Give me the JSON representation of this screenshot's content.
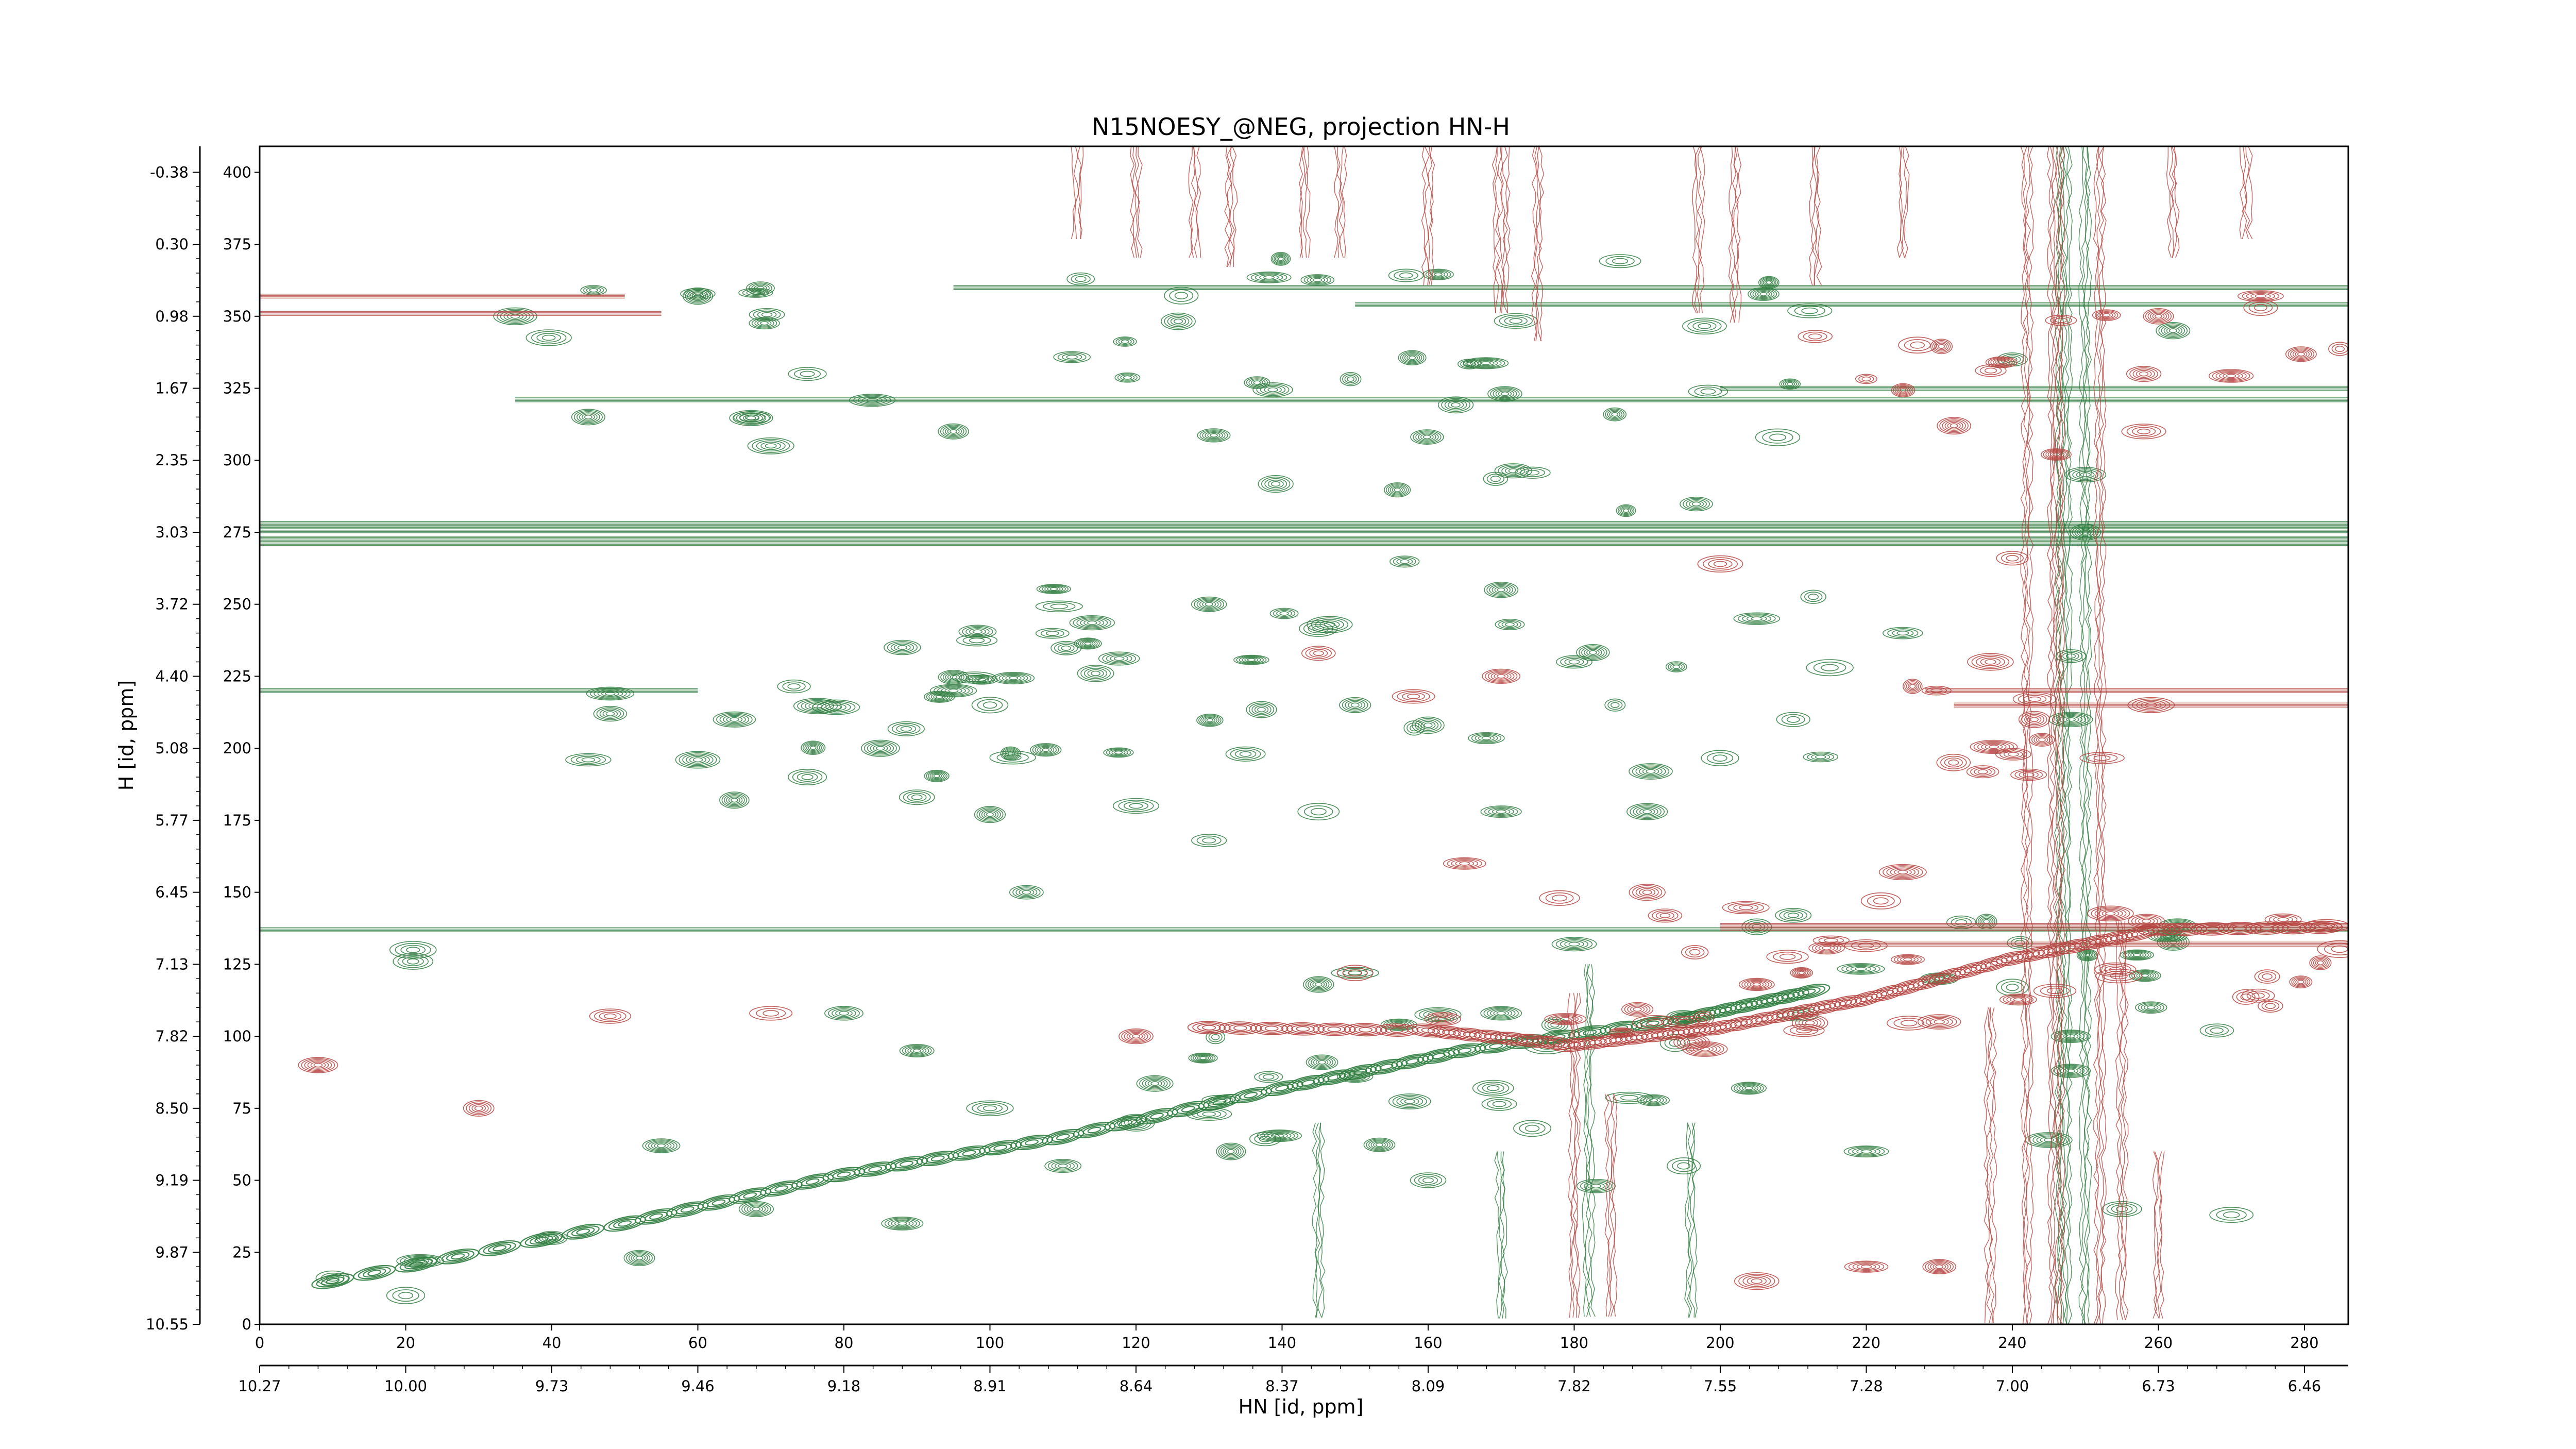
{
  "chart_data": {
    "type": "heatmap",
    "subtype": "2D NMR contour plot",
    "title": "N15NOESY_@NEG, projection HN-H",
    "xlabel_index": "",
    "xlabel_ppm": "HN [id, ppm]",
    "ylabel": "H [id, ppm]",
    "x_index_ticks": [
      "0",
      "20",
      "40",
      "60",
      "80",
      "100",
      "120",
      "140",
      "160",
      "180",
      "200",
      "220",
      "240",
      "260",
      "280"
    ],
    "x_ppm_ticks": [
      "10.27",
      "10.00",
      "9.73",
      "9.46",
      "9.18",
      "8.91",
      "8.64",
      "8.37",
      "8.09",
      "7.82",
      "7.55",
      "7.28",
      "7.00",
      "6.73",
      "6.46"
    ],
    "y_index_ticks": [
      "0",
      "25",
      "50",
      "75",
      "100",
      "125",
      "150",
      "175",
      "200",
      "225",
      "250",
      "275",
      "300",
      "325",
      "350",
      "375",
      "400"
    ],
    "y_ppm_ticks": [
      "10.55",
      "9.87",
      "9.19",
      "8.50",
      "7.82",
      "7.13",
      "6.45",
      "5.77",
      "5.08",
      "4.40",
      "3.72",
      "3.03",
      "2.35",
      "1.67",
      "0.98",
      "0.30",
      "-0.38"
    ],
    "xlim": [
      0,
      286
    ],
    "ylim": [
      0,
      409
    ],
    "grid": false,
    "colors": {
      "positive": "#2e7d3e",
      "negative": "#b5443f"
    },
    "series": [
      {
        "sign": "positive",
        "horizontal_bands": [
          {
            "y": 272,
            "x": [
              0,
              286
            ],
            "weight": 3
          },
          {
            "y": 276,
            "x": [
              0,
              286
            ],
            "weight": 2
          },
          {
            "y": 278,
            "x": [
              0,
              286
            ],
            "weight": 1
          },
          {
            "y": 321,
            "x": [
              35,
              286
            ],
            "weight": 1
          },
          {
            "y": 360,
            "x": [
              95,
              286
            ],
            "weight": 1
          },
          {
            "y": 354,
            "x": [
              150,
              286
            ],
            "weight": 1
          },
          {
            "y": 325,
            "x": [
              200,
              286
            ],
            "weight": 1
          },
          {
            "y": 137,
            "x": [
              0,
              286
            ],
            "weight": 1
          },
          {
            "y": 220,
            "x": [
              0,
              60
            ],
            "weight": 1
          }
        ],
        "vertical_bands": [
          {
            "x": 247,
            "y": [
              0,
              409
            ],
            "weight": 2
          },
          {
            "x": 250,
            "y": [
              0,
              409
            ],
            "weight": 1
          },
          {
            "x": 145,
            "y": [
              0,
              70
            ],
            "weight": 1
          },
          {
            "x": 170,
            "y": [
              0,
              60
            ],
            "weight": 1
          },
          {
            "x": 182,
            "y": [
              0,
              125
            ],
            "weight": 1
          },
          {
            "x": 196,
            "y": [
              0,
              70
            ],
            "weight": 1
          }
        ],
        "diagonal": [
          [
            10,
            15
          ],
          [
            50,
            35
          ],
          [
            80,
            52
          ],
          [
            110,
            65
          ],
          [
            140,
            82
          ],
          [
            165,
            95
          ],
          [
            195,
            106
          ],
          [
            215,
            117
          ]
        ],
        "clusters": [
          {
            "x": [
              110,
              215
            ],
            "y": [
              280,
              375
            ],
            "density": 38
          },
          {
            "x": [
              95,
              215
            ],
            "y": [
              190,
              265
            ],
            "density": 30
          },
          {
            "x": [
              70,
              110
            ],
            "y": [
              190,
              235
            ],
            "density": 12
          },
          {
            "x": [
              115,
              215
            ],
            "y": [
              60,
              110
            ],
            "density": 22
          },
          {
            "x": [
              215,
              265
            ],
            "y": [
              120,
              145
            ],
            "density": 10
          },
          {
            "x": [
              35,
              100
            ],
            "y": [
              300,
              360
            ],
            "density": 10
          }
        ],
        "peaks": [
          [
            21,
            126
          ],
          [
            21,
            130
          ],
          [
            22,
            22
          ],
          [
            10,
            16
          ],
          [
            45,
            196
          ],
          [
            48,
            212
          ],
          [
            48,
            219
          ],
          [
            60,
            196
          ],
          [
            65,
            210
          ],
          [
            75,
            190
          ],
          [
            85,
            200
          ],
          [
            90,
            183
          ],
          [
            65,
            182
          ],
          [
            88,
            235
          ],
          [
            95,
            220
          ],
          [
            100,
            215
          ],
          [
            52,
            23
          ],
          [
            40,
            30
          ],
          [
            230,
            120
          ],
          [
            240,
            117
          ],
          [
            248,
            100
          ],
          [
            248,
            88
          ],
          [
            248,
            210
          ],
          [
            248,
            232
          ],
          [
            259,
            110
          ],
          [
            268,
            102
          ],
          [
            130,
            168
          ],
          [
            145,
            178
          ],
          [
            170,
            178
          ],
          [
            190,
            178
          ],
          [
            100,
            177
          ],
          [
            120,
            180
          ],
          [
            135,
            198
          ],
          [
            160,
            208
          ],
          [
            205,
            138
          ],
          [
            210,
            142
          ],
          [
            180,
            132
          ],
          [
            250,
            275
          ],
          [
            250,
            295
          ],
          [
            262,
            345
          ],
          [
            240,
            335
          ],
          [
            150,
            86
          ],
          [
            156,
            104
          ],
          [
            170,
            108
          ],
          [
            130,
            73
          ],
          [
            120,
            70
          ],
          [
            105,
            150
          ],
          [
            35,
            350
          ],
          [
            60,
            357
          ],
          [
            75,
            330
          ],
          [
            45,
            315
          ],
          [
            70,
            305
          ],
          [
            95,
            310
          ],
          [
            215,
            228
          ],
          [
            225,
            240
          ],
          [
            130,
            250
          ],
          [
            170,
            255
          ],
          [
            205,
            245
          ],
          [
            210,
            210
          ],
          [
            150,
            215
          ],
          [
            180,
            230
          ],
          [
            80,
            108
          ],
          [
            90,
            95
          ],
          [
            100,
            75
          ],
          [
            110,
            55
          ],
          [
            133,
            60
          ],
          [
            160,
            50
          ],
          [
            183,
            48
          ],
          [
            195,
            55
          ],
          [
            220,
            60
          ],
          [
            245,
            64
          ],
          [
            255,
            40
          ],
          [
            270,
            38
          ],
          [
            20,
            10
          ],
          [
            55,
            62
          ],
          [
            68,
            40
          ],
          [
            88,
            35
          ],
          [
            145,
            118
          ],
          [
            150,
            122
          ]
        ]
      },
      {
        "sign": "negative",
        "horizontal_bands": [
          {
            "y": 357,
            "x": [
              0,
              50
            ],
            "weight": 1
          },
          {
            "y": 351,
            "x": [
              0,
              55
            ],
            "weight": 1
          },
          {
            "y": 220,
            "x": [
              228,
              286
            ],
            "weight": 1
          },
          {
            "y": 215,
            "x": [
              232,
              286
            ],
            "weight": 1
          },
          {
            "y": 138,
            "x": [
              200,
              286
            ],
            "weight": 2
          },
          {
            "y": 132,
            "x": [
              215,
              286
            ],
            "weight": 1
          }
        ],
        "vertical_bands": [
          {
            "x": 170,
            "y": [
              350,
              409
            ],
            "weight": 2
          },
          {
            "x": 175,
            "y": [
              340,
              409
            ],
            "weight": 1
          },
          {
            "x": 160,
            "y": [
              360,
              409
            ],
            "weight": 1
          },
          {
            "x": 148,
            "y": [
              370,
              409
            ],
            "weight": 1
          },
          {
            "x": 143,
            "y": [
              370,
              409
            ],
            "weight": 1
          },
          {
            "x": 133,
            "y": [
              365,
              409
            ],
            "weight": 1
          },
          {
            "x": 128,
            "y": [
              370,
              409
            ],
            "weight": 1
          },
          {
            "x": 120,
            "y": [
              370,
              409
            ],
            "weight": 1
          },
          {
            "x": 112,
            "y": [
              375,
              409
            ],
            "weight": 1
          },
          {
            "x": 197,
            "y": [
              350,
              409
            ],
            "weight": 1
          },
          {
            "x": 202,
            "y": [
              345,
              409
            ],
            "weight": 1
          },
          {
            "x": 213,
            "y": [
              360,
              409
            ],
            "weight": 1
          },
          {
            "x": 225,
            "y": [
              370,
              409
            ],
            "weight": 1
          },
          {
            "x": 242,
            "y": [
              0,
              409
            ],
            "weight": 1
          },
          {
            "x": 246,
            "y": [
              0,
              409
            ],
            "weight": 2
          },
          {
            "x": 252,
            "y": [
              0,
              409
            ],
            "weight": 1
          },
          {
            "x": 255,
            "y": [
              0,
              140
            ],
            "weight": 1
          },
          {
            "x": 237,
            "y": [
              0,
              110
            ],
            "weight": 1
          },
          {
            "x": 260,
            "y": [
              0,
              60
            ],
            "weight": 1
          },
          {
            "x": 185,
            "y": [
              0,
              80
            ],
            "weight": 1
          },
          {
            "x": 180,
            "y": [
              0,
              115
            ],
            "weight": 1
          },
          {
            "x": 262,
            "y": [
              370,
              409
            ],
            "weight": 1
          },
          {
            "x": 272,
            "y": [
              375,
              409
            ],
            "weight": 1
          }
        ],
        "diagonal": [
          [
            130,
            103
          ],
          [
            160,
            102
          ],
          [
            180,
            97
          ],
          [
            200,
            103
          ],
          [
            220,
            113
          ],
          [
            240,
            127
          ],
          [
            260,
            137
          ],
          [
            286,
            138
          ]
        ],
        "clusters": [
          {
            "x": [
              190,
              286
            ],
            "y": [
              110,
              145
            ],
            "density": 24
          },
          {
            "x": [
              170,
              230
            ],
            "y": [
              95,
              115
            ],
            "density": 10
          },
          {
            "x": [
              215,
              286
            ],
            "y": [
              315,
              360
            ],
            "density": 10
          },
          {
            "x": [
              225,
              255
            ],
            "y": [
              180,
              225
            ],
            "density": 10
          }
        ],
        "peaks": [
          [
            274,
            353
          ],
          [
            274,
            357
          ],
          [
            260,
            350
          ],
          [
            258,
            330
          ],
          [
            258,
            310
          ],
          [
            232,
            312
          ],
          [
            213,
            343
          ],
          [
            227,
            340
          ],
          [
            246,
            302
          ],
          [
            243,
            210
          ],
          [
            259,
            215
          ],
          [
            237,
            230
          ],
          [
            230,
            105
          ],
          [
            162,
            106
          ],
          [
            158,
            218
          ],
          [
            145,
            233
          ],
          [
            170,
            225
          ],
          [
            120,
            100
          ],
          [
            200,
            264
          ],
          [
            240,
            266
          ],
          [
            230,
            20
          ],
          [
            220,
            20
          ],
          [
            195,
            105
          ],
          [
            205,
            118
          ],
          [
            8,
            90
          ],
          [
            30,
            75
          ],
          [
            48,
            107
          ],
          [
            70,
            108
          ],
          [
            205,
            15
          ],
          [
            150,
            122
          ],
          [
            165,
            160
          ],
          [
            178,
            148
          ],
          [
            222,
            147
          ],
          [
            225,
            157
          ],
          [
            190,
            150
          ]
        ]
      }
    ]
  }
}
